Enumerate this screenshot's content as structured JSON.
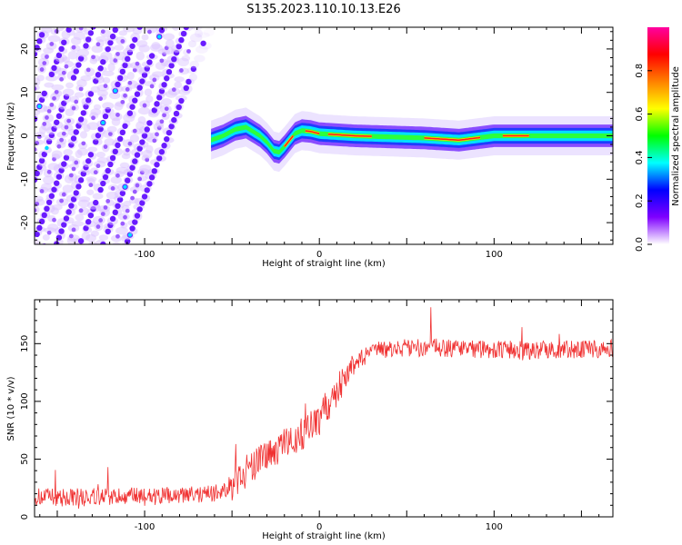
{
  "figure": {
    "title": "S135.2023.110.10.13.E26"
  },
  "chart_data": [
    {
      "type": "heatmap",
      "xlabel": "Height of straight line (km)",
      "ylabel": "Frequency (Hz)",
      "xlim": [
        -163,
        168
      ],
      "ylim": [
        -25,
        25
      ],
      "xticks": [
        -100,
        0,
        100
      ],
      "yticks": [
        -20,
        -10,
        0,
        10,
        20
      ],
      "grid": false,
      "colorbar": {
        "label": "Normalized spectral amplitude",
        "range": [
          0,
          1
        ],
        "ticks": [
          0.0,
          0.2,
          0.4,
          0.6,
          0.8
        ],
        "tick_labels": [
          "0.0",
          "0.2",
          "0.4",
          "0.6",
          "0.8"
        ],
        "colormap": [
          "#ffffff",
          "#7f00ff",
          "#0000ff",
          "#00ffff",
          "#00ff00",
          "#ffff00",
          "#ff8000",
          "#ff0000",
          "#ff00a0"
        ]
      },
      "ridge": {
        "x": [
          -62,
          -55,
          -48,
          -42,
          -38,
          -34,
          -30,
          -26,
          -23,
          -20,
          -17,
          -14,
          -10,
          -5,
          0,
          20,
          60,
          80,
          90,
          100,
          120,
          168
        ],
        "y": [
          -1,
          0,
          1.5,
          2,
          1,
          0,
          -1.5,
          -3.5,
          -3.8,
          -2.5,
          -1,
          0.5,
          1.2,
          1,
          0.5,
          0,
          -0.5,
          -1,
          -0.5,
          0,
          0,
          0
        ]
      },
      "stripes": {
        "slope_hz_per_km": 1.05,
        "x_range": [
          -163,
          -60
        ],
        "intercepts_y_at_x0": [
          190,
          182,
          175,
          168,
          161,
          154,
          147,
          140,
          133,
          126,
          119,
          112,
          105,
          98,
          91
        ]
      }
    },
    {
      "type": "line",
      "xlabel": "Height of straight line (km)",
      "ylabel": "SNR (10 * v/v)",
      "xlim": [
        -163,
        168
      ],
      "ylim": [
        0,
        188
      ],
      "xticks": [
        -100,
        0,
        100
      ],
      "yticks": [
        0,
        50,
        100,
        150
      ],
      "grid": false,
      "series": [
        {
          "color": "#f03232",
          "trend": {
            "x": [
              -163,
              -120,
              -80,
              -60,
              -50,
              -40,
              -30,
              -20,
              -10,
              0,
              10,
              20,
              30,
              50,
              80,
              100,
              120,
              140,
              168
            ],
            "y": [
              17,
              17,
              18,
              20,
              28,
              42,
              52,
              62,
              72,
              85,
              110,
              133,
              143,
              147,
              146,
              145,
              144,
              145,
              146
            ]
          },
          "noise_amplitude": 8
        }
      ]
    }
  ]
}
